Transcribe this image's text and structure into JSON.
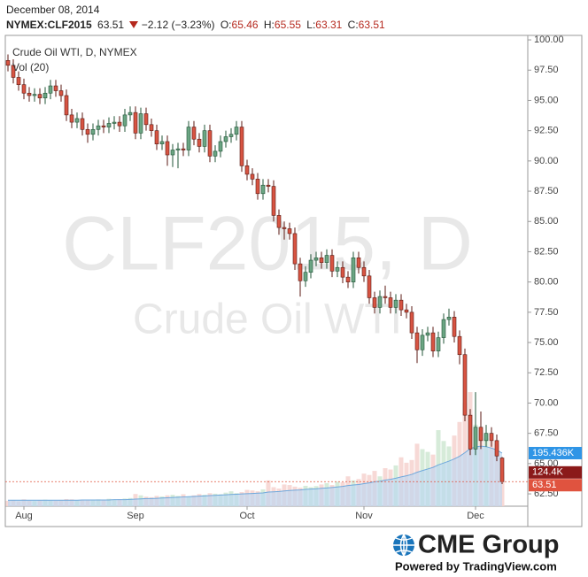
{
  "header": {
    "date": "December 08, 2014",
    "symbol": "NYMEX:CLF2015",
    "change": "−2.12 (−3.23%)",
    "o_label": "O:",
    "h_label": "H:",
    "l_label": "L:",
    "c_label": "C:"
  },
  "chart_data": {
    "type": "candlestick",
    "title": "Crude Oil WTI, D, NYMEX",
    "watermark": [
      "CLF2015, D",
      "Crude Oil WTI"
    ],
    "up_color": "#6ba583",
    "down_color": "#d75442",
    "up_border": "#225437",
    "down_border": "#5b1a13",
    "categories": [
      null,
      null,
      null,
      "Aug",
      null,
      null,
      null,
      null,
      null,
      null,
      null,
      null,
      null,
      null,
      null,
      null,
      null,
      null,
      null,
      null,
      null,
      null,
      null,
      null,
      "Sep",
      null,
      null,
      null,
      null,
      null,
      null,
      null,
      null,
      null,
      null,
      null,
      null,
      null,
      null,
      null,
      null,
      null,
      null,
      null,
      null,
      "Oct",
      null,
      null,
      null,
      null,
      null,
      null,
      null,
      null,
      null,
      null,
      null,
      null,
      null,
      null,
      null,
      null,
      null,
      null,
      null,
      null,
      null,
      "Nov",
      null,
      null,
      null,
      null,
      null,
      null,
      null,
      null,
      null,
      null,
      null,
      null,
      null,
      null,
      null,
      null,
      null,
      null,
      null,
      null,
      "Dec",
      null,
      null,
      null,
      null,
      null
    ],
    "open": [
      98.3,
      97.9,
      96.9,
      96.3,
      95.6,
      95.4,
      95.5,
      95.2,
      95.6,
      96.2,
      95.8,
      95.4,
      93.8,
      93.2,
      93.5,
      92.6,
      92.2,
      92.6,
      92.9,
      92.8,
      93.1,
      93.2,
      92.9,
      93.8,
      94.0,
      92.3,
      93.9,
      93.0,
      92.5,
      91.4,
      91.6,
      90.5,
      90.9,
      91.0,
      90.9,
      92.8,
      91.8,
      91.2,
      92.5,
      90.4,
      90.8,
      91.6,
      92.0,
      92.2,
      92.8,
      89.6,
      88.9,
      88.5,
      87.3,
      88.0,
      87.9,
      85.5,
      84.5,
      84.4,
      84.0,
      81.5,
      80.1,
      80.8,
      81.8,
      82.0,
      81.6,
      82.2,
      80.9,
      81.2,
      80.4,
      80.0,
      82.0,
      81.2,
      80.5,
      78.7,
      77.9,
      78.8,
      78.7,
      77.9,
      78.5,
      77.7,
      77.5,
      75.8,
      74.4,
      75.6,
      75.8,
      74.3,
      75.4,
      76.9,
      77.1,
      75.5,
      74.0,
      69.0,
      66.2,
      68.0,
      66.9,
      67.5,
      66.9,
      65.46
    ],
    "high": [
      98.8,
      98.4,
      97.4,
      96.8,
      96.1,
      96.0,
      96.0,
      96.1,
      96.7,
      96.7,
      96.3,
      95.9,
      94.3,
      94.0,
      94.0,
      93.1,
      93.1,
      93.4,
      93.4,
      93.6,
      93.7,
      93.7,
      94.3,
      94.5,
      94.5,
      94.4,
      94.4,
      93.5,
      93.0,
      92.1,
      92.1,
      91.4,
      91.5,
      91.5,
      93.3,
      93.3,
      92.3,
      93.0,
      93.0,
      91.3,
      92.1,
      92.5,
      92.7,
      93.3,
      93.3,
      90.1,
      89.4,
      89.0,
      88.5,
      88.5,
      88.4,
      86.0,
      85.0,
      84.9,
      84.5,
      82.0,
      81.3,
      82.3,
      82.5,
      82.5,
      82.7,
      82.7,
      81.7,
      81.7,
      80.9,
      82.5,
      82.5,
      81.7,
      81.0,
      79.2,
      79.3,
      79.7,
      79.2,
      79.0,
      79.0,
      78.2,
      78.0,
      76.3,
      76.1,
      76.3,
      76.3,
      75.9,
      77.4,
      77.8,
      77.6,
      76.0,
      74.5,
      69.5,
      70.9,
      69.3,
      68.2,
      68.0,
      67.4,
      65.55
    ],
    "low": [
      97.4,
      96.4,
      95.8,
      95.1,
      94.9,
      94.9,
      94.7,
      94.7,
      95.1,
      95.3,
      94.9,
      93.3,
      92.7,
      92.7,
      92.1,
      91.5,
      91.7,
      92.1,
      92.3,
      92.3,
      92.6,
      92.4,
      92.4,
      93.3,
      91.8,
      91.8,
      92.5,
      92.0,
      90.9,
      90.9,
      89.6,
      89.5,
      89.4,
      90.4,
      90.4,
      91.3,
      90.7,
      90.7,
      89.9,
      89.9,
      90.3,
      91.1,
      91.5,
      91.7,
      89.1,
      88.4,
      88.0,
      86.8,
      86.8,
      87.4,
      85.0,
      83.9,
      83.5,
      83.5,
      81.0,
      78.8,
      79.6,
      80.3,
      81.3,
      81.1,
      81.1,
      80.4,
      80.4,
      79.9,
      79.5,
      79.5,
      80.7,
      80.0,
      78.2,
      77.4,
      77.4,
      78.2,
      77.4,
      77.4,
      77.2,
      77.0,
      75.3,
      73.3,
      73.9,
      75.1,
      73.8,
      73.8,
      74.9,
      76.4,
      75.0,
      73.2,
      68.5,
      65.7,
      65.7,
      66.2,
      66.4,
      66.4,
      65.2,
      63.31
    ],
    "close": [
      97.9,
      96.9,
      96.3,
      95.6,
      95.4,
      95.5,
      95.2,
      95.6,
      96.2,
      95.8,
      95.4,
      93.8,
      93.2,
      93.5,
      92.6,
      92.2,
      92.6,
      92.9,
      92.8,
      93.1,
      93.2,
      92.9,
      93.8,
      94.0,
      92.3,
      93.9,
      93.0,
      92.5,
      91.4,
      91.6,
      90.5,
      90.9,
      91.0,
      90.9,
      92.8,
      91.8,
      91.2,
      92.5,
      90.4,
      90.8,
      91.6,
      92.0,
      92.2,
      92.8,
      89.6,
      88.9,
      88.5,
      87.3,
      88.0,
      87.9,
      85.5,
      84.5,
      84.4,
      84.0,
      81.5,
      80.1,
      80.8,
      81.8,
      82.0,
      81.6,
      82.2,
      80.9,
      81.2,
      80.4,
      80.0,
      82.0,
      81.2,
      80.5,
      78.7,
      77.9,
      78.8,
      78.7,
      77.9,
      78.5,
      77.7,
      77.5,
      75.8,
      74.4,
      75.6,
      75.8,
      74.3,
      75.4,
      76.9,
      77.1,
      75.5,
      74.0,
      69.0,
      66.2,
      68.0,
      66.9,
      67.5,
      66.9,
      65.63,
      63.51
    ],
    "ylim": [
      61.48,
      100.37
    ],
    "yticks": [
      {
        "value": 62.5,
        "label": "62.50"
      },
      {
        "value": 65,
        "label": "65.00"
      },
      {
        "value": 67.5,
        "label": "67.50"
      },
      {
        "value": 70,
        "label": "70.00"
      },
      {
        "value": 72.5,
        "label": "72.50"
      },
      {
        "value": 75,
        "label": "75.00"
      },
      {
        "value": 77.5,
        "label": "77.50"
      },
      {
        "value": 80,
        "label": "80.00"
      },
      {
        "value": 82.5,
        "label": "82.50"
      },
      {
        "value": 85,
        "label": "85.00"
      },
      {
        "value": 87.5,
        "label": "87.50"
      },
      {
        "value": 90,
        "label": "90.00"
      },
      {
        "value": 92.5,
        "label": "92.50"
      },
      {
        "value": 95,
        "label": "95.00"
      },
      {
        "value": 97.5,
        "label": "97.50"
      },
      {
        "value": 100,
        "label": "100.00"
      }
    ],
    "last_price_color": "#e0533f",
    "volume": {
      "name": "Vol (20)",
      "ylim": [
        0,
        1733
      ],
      "up_color": "#cfe8d2",
      "down_color": "#f6d2cf",
      "ma_color": "#6fa8dc",
      "ma_fill": "#b7d6f2",
      "last_color": "#8b1a1a",
      "ma_label_color": "#2f95e6",
      "values": [
        20,
        22,
        18,
        25,
        20,
        19,
        22,
        24,
        21,
        20,
        23,
        26,
        25,
        22,
        24,
        21,
        23,
        25,
        22,
        27,
        24,
        26,
        28,
        30,
        45,
        40,
        35,
        33,
        38,
        36,
        40,
        42,
        38,
        44,
        36,
        40,
        45,
        42,
        48,
        46,
        44,
        50,
        55,
        48,
        52,
        60,
        58,
        55,
        62,
        95,
        70,
        65,
        80,
        78,
        72,
        68,
        75,
        70,
        74,
        80,
        85,
        78,
        90,
        88,
        110,
        95,
        100,
        120,
        115,
        130,
        110,
        140,
        135,
        150,
        180,
        160,
        170,
        230,
        210,
        200,
        190,
        280,
        240,
        220,
        260,
        310,
        380,
        420,
        300,
        280,
        250,
        240,
        230,
        124.4
      ],
      "ma_values": [
        22,
        22,
        22,
        22,
        22,
        22,
        22,
        22,
        22,
        22,
        22,
        22,
        22,
        22,
        23,
        23,
        23,
        23,
        23,
        23,
        24,
        24,
        24,
        25,
        26,
        27,
        28,
        28,
        29,
        30,
        31,
        32,
        33,
        34,
        35,
        36,
        37,
        38,
        39,
        40,
        41,
        42,
        43,
        44,
        45,
        46,
        47,
        48,
        49,
        52,
        53,
        54,
        56,
        58,
        59,
        60,
        62,
        63,
        64,
        66,
        67,
        69,
        71,
        73,
        76,
        78,
        80,
        83,
        86,
        90,
        92,
        96,
        99,
        103,
        108,
        112,
        117,
        125,
        131,
        137,
        143,
        152,
        159,
        166,
        174,
        184,
        197,
        212,
        218,
        221,
        219,
        214,
        207,
        195.436
      ],
      "markers": [
        {
          "value": 195.436,
          "label": "195.436K"
        },
        {
          "value": 124.4,
          "label": "124.4K"
        }
      ]
    },
    "logo": {
      "name": "CME Group",
      "powered": "Powered by TradingView.com"
    }
  }
}
